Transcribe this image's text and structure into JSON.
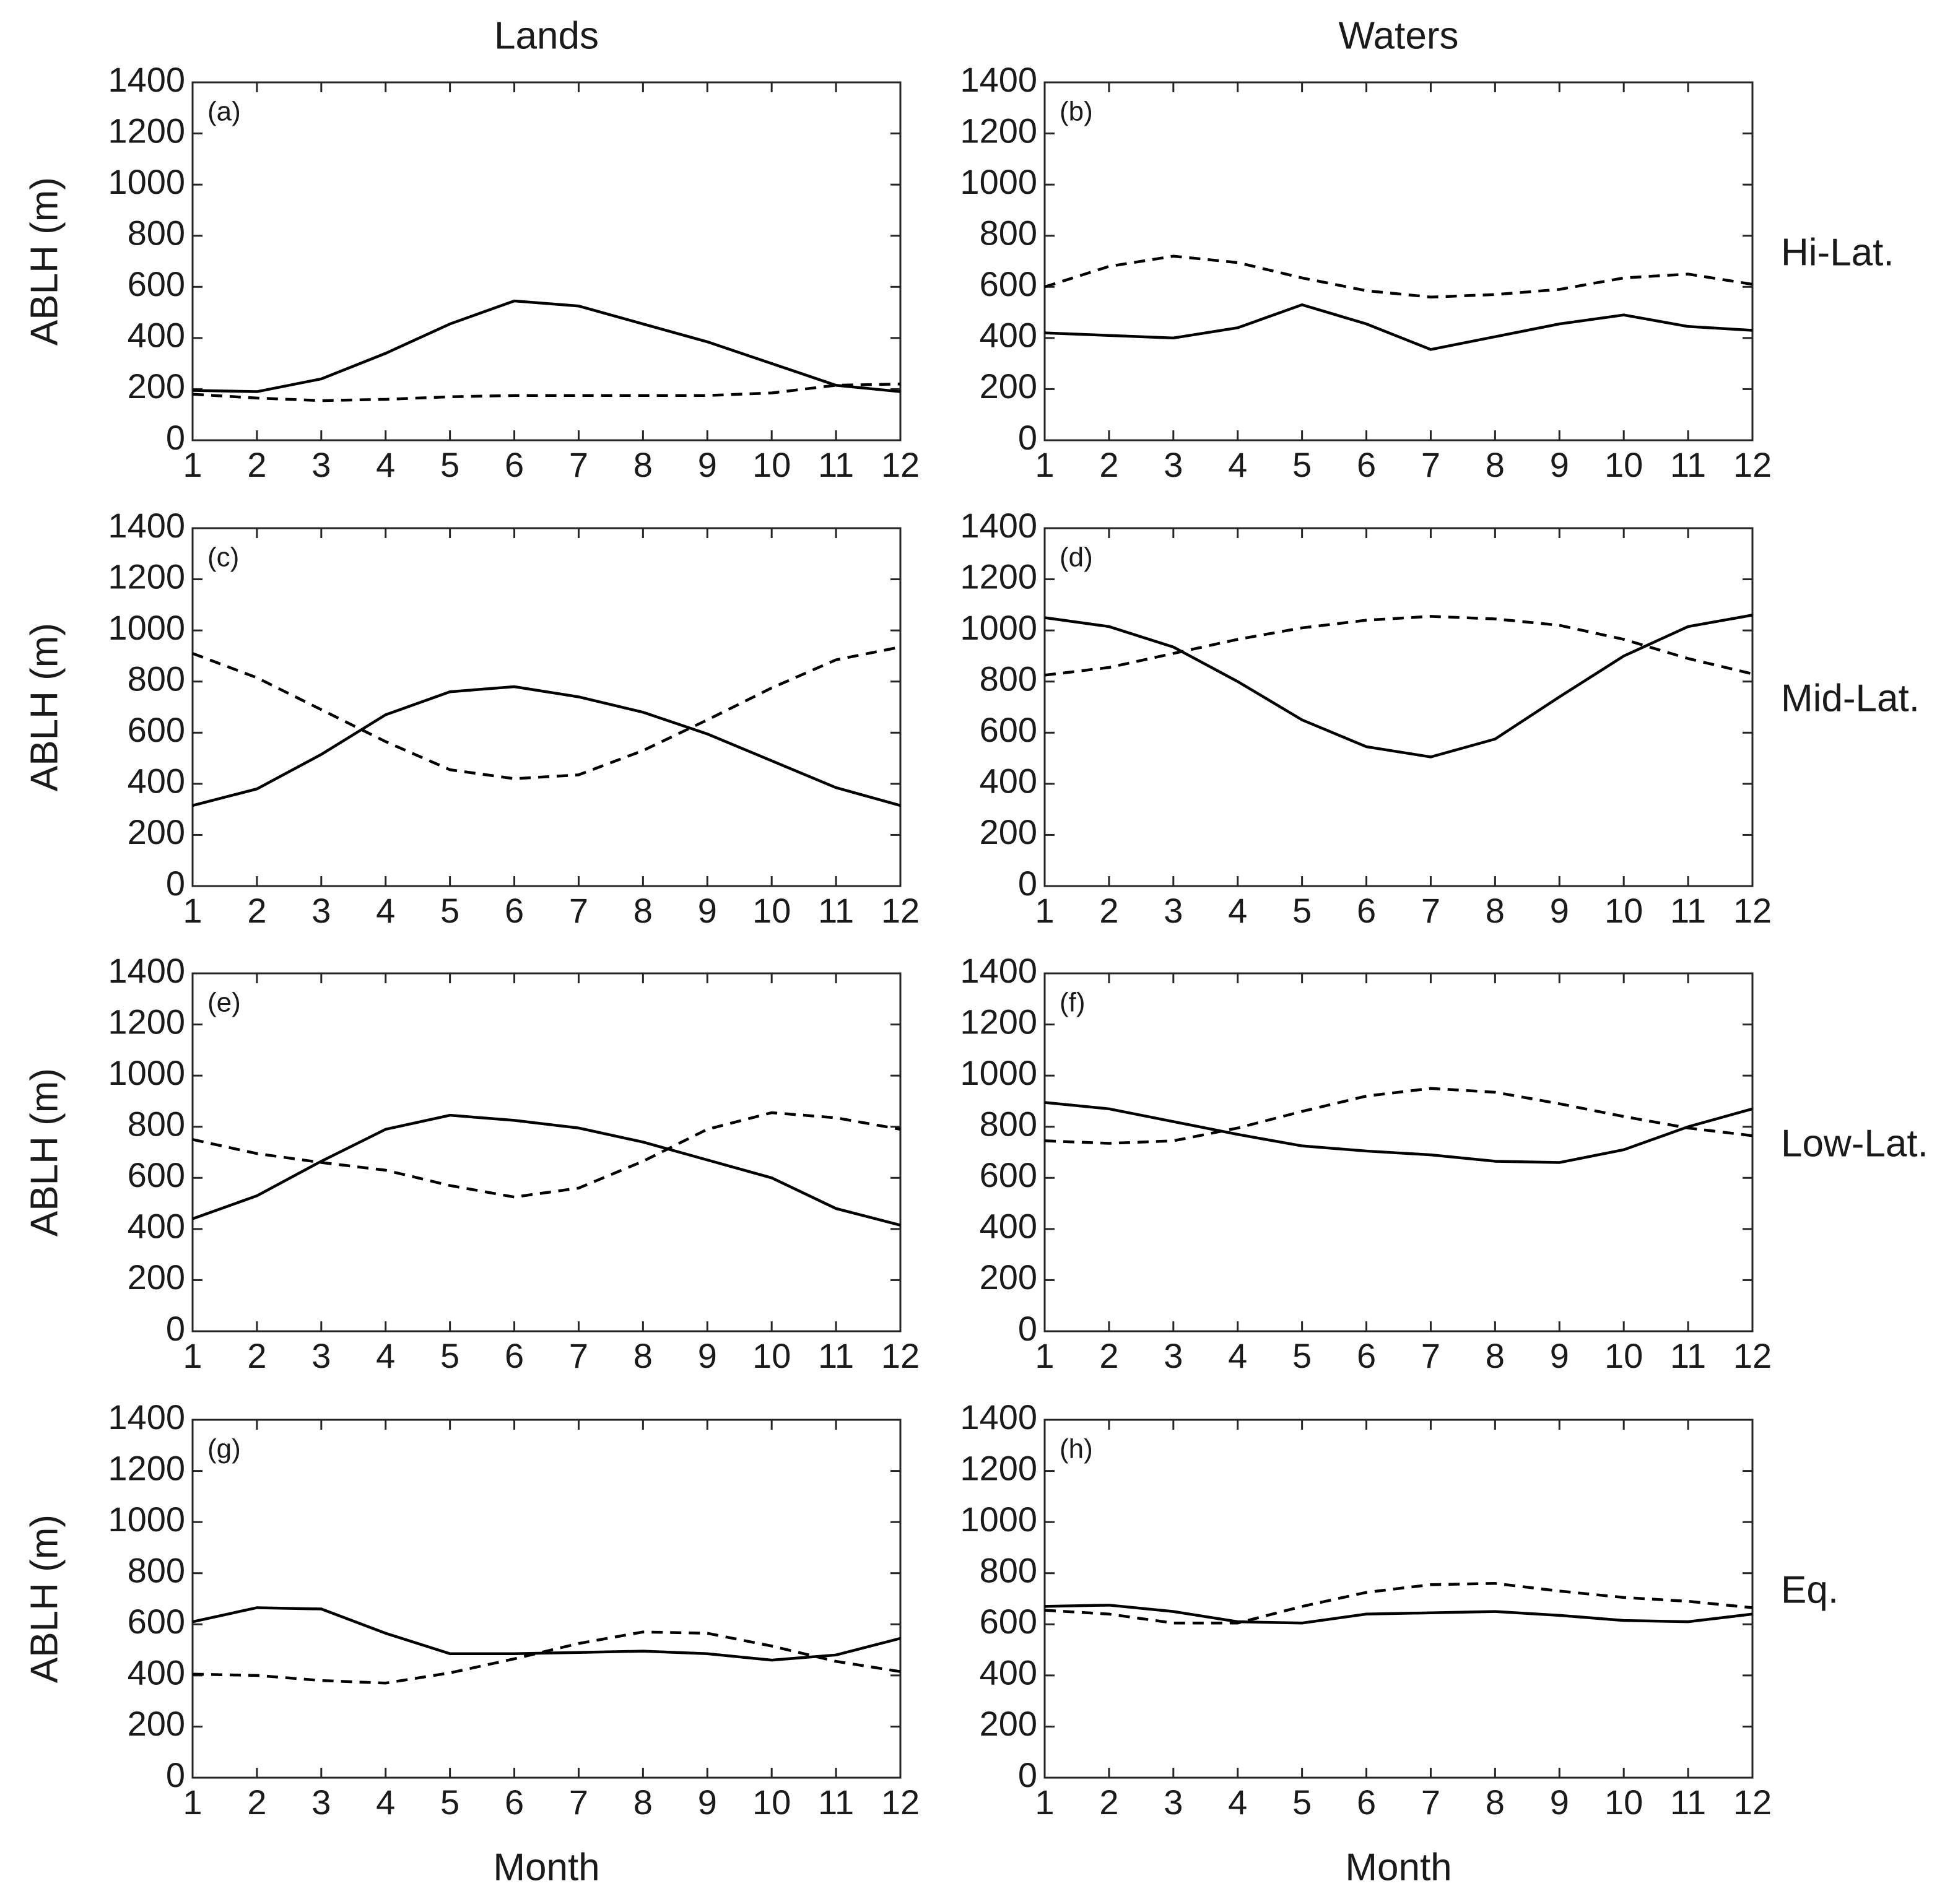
{
  "chart_data": [
    {
      "type": "line",
      "panel_label": "(a)",
      "column_title": "Lands",
      "ylabel": "ABLH (m)",
      "x": [
        1,
        2,
        3,
        4,
        5,
        6,
        7,
        8,
        9,
        10,
        11,
        12
      ],
      "xlim": [
        1,
        12
      ],
      "xticks": [
        1,
        2,
        3,
        4,
        5,
        6,
        7,
        8,
        9,
        10,
        11,
        12
      ],
      "ylim": [
        0,
        1400
      ],
      "yticks": [
        0,
        200,
        400,
        600,
        800,
        1000,
        1200,
        1400
      ],
      "series": [
        {
          "color": "#000000",
          "style": "solid",
          "values": [
            195,
            190,
            240,
            340,
            455,
            545,
            525,
            455,
            385,
            300,
            215,
            190
          ]
        },
        {
          "color": "#000000",
          "style": "dashed",
          "values": [
            180,
            165,
            155,
            160,
            170,
            175,
            175,
            175,
            175,
            185,
            215,
            220
          ]
        }
      ]
    },
    {
      "type": "line",
      "panel_label": "(b)",
      "column_title": "Waters",
      "row_label": "Hi-Lat.",
      "x": [
        1,
        2,
        3,
        4,
        5,
        6,
        7,
        8,
        9,
        10,
        11,
        12
      ],
      "xlim": [
        1,
        12
      ],
      "xticks": [
        1,
        2,
        3,
        4,
        5,
        6,
        7,
        8,
        9,
        10,
        11,
        12
      ],
      "ylim": [
        0,
        1400
      ],
      "yticks": [
        0,
        200,
        400,
        600,
        800,
        1000,
        1200,
        1400
      ],
      "series": [
        {
          "color": "#000000",
          "style": "solid",
          "values": [
            420,
            410,
            400,
            440,
            530,
            455,
            355,
            405,
            455,
            490,
            445,
            430
          ]
        },
        {
          "color": "#000000",
          "style": "dashed",
          "values": [
            600,
            680,
            720,
            695,
            635,
            585,
            560,
            570,
            590,
            635,
            650,
            610
          ]
        }
      ]
    },
    {
      "type": "line",
      "panel_label": "(c)",
      "ylabel": "ABLH (m)",
      "x": [
        1,
        2,
        3,
        4,
        5,
        6,
        7,
        8,
        9,
        10,
        11,
        12
      ],
      "xlim": [
        1,
        12
      ],
      "xticks": [
        1,
        2,
        3,
        4,
        5,
        6,
        7,
        8,
        9,
        10,
        11,
        12
      ],
      "ylim": [
        0,
        1400
      ],
      "yticks": [
        0,
        200,
        400,
        600,
        800,
        1000,
        1200,
        1400
      ],
      "series": [
        {
          "color": "#000000",
          "style": "solid",
          "values": [
            315,
            380,
            515,
            670,
            760,
            780,
            740,
            680,
            595,
            490,
            385,
            315
          ]
        },
        {
          "color": "#000000",
          "style": "dashed",
          "values": [
            910,
            815,
            690,
            565,
            455,
            420,
            435,
            530,
            650,
            775,
            885,
            935
          ]
        }
      ]
    },
    {
      "type": "line",
      "panel_label": "(d)",
      "row_label": "Mid-Lat.",
      "x": [
        1,
        2,
        3,
        4,
        5,
        6,
        7,
        8,
        9,
        10,
        11,
        12
      ],
      "xlim": [
        1,
        12
      ],
      "xticks": [
        1,
        2,
        3,
        4,
        5,
        6,
        7,
        8,
        9,
        10,
        11,
        12
      ],
      "ylim": [
        0,
        1400
      ],
      "yticks": [
        0,
        200,
        400,
        600,
        800,
        1000,
        1200,
        1400
      ],
      "series": [
        {
          "color": "#000000",
          "style": "solid",
          "values": [
            1050,
            1015,
            935,
            800,
            650,
            545,
            505,
            575,
            740,
            900,
            1015,
            1060
          ]
        },
        {
          "color": "#000000",
          "style": "dashed",
          "values": [
            825,
            855,
            910,
            965,
            1010,
            1040,
            1055,
            1045,
            1020,
            965,
            890,
            830
          ]
        }
      ]
    },
    {
      "type": "line",
      "panel_label": "(e)",
      "ylabel": "ABLH (m)",
      "x": [
        1,
        2,
        3,
        4,
        5,
        6,
        7,
        8,
        9,
        10,
        11,
        12
      ],
      "xlim": [
        1,
        12
      ],
      "xticks": [
        1,
        2,
        3,
        4,
        5,
        6,
        7,
        8,
        9,
        10,
        11,
        12
      ],
      "ylim": [
        0,
        1400
      ],
      "yticks": [
        0,
        200,
        400,
        600,
        800,
        1000,
        1200,
        1400
      ],
      "series": [
        {
          "color": "#000000",
          "style": "solid",
          "values": [
            440,
            530,
            665,
            790,
            845,
            825,
            795,
            740,
            670,
            600,
            480,
            415
          ]
        },
        {
          "color": "#000000",
          "style": "dashed",
          "values": [
            750,
            695,
            660,
            630,
            570,
            525,
            560,
            665,
            790,
            855,
            835,
            790
          ]
        }
      ]
    },
    {
      "type": "line",
      "panel_label": "(f)",
      "row_label": "Low-Lat.",
      "x": [
        1,
        2,
        3,
        4,
        5,
        6,
        7,
        8,
        9,
        10,
        11,
        12
      ],
      "xlim": [
        1,
        12
      ],
      "xticks": [
        1,
        2,
        3,
        4,
        5,
        6,
        7,
        8,
        9,
        10,
        11,
        12
      ],
      "ylim": [
        0,
        1400
      ],
      "yticks": [
        0,
        200,
        400,
        600,
        800,
        1000,
        1200,
        1400
      ],
      "series": [
        {
          "color": "#000000",
          "style": "solid",
          "values": [
            895,
            870,
            820,
            770,
            725,
            705,
            690,
            665,
            660,
            710,
            800,
            870
          ]
        },
        {
          "color": "#000000",
          "style": "dashed",
          "values": [
            745,
            735,
            745,
            795,
            860,
            920,
            950,
            935,
            890,
            840,
            795,
            765
          ]
        }
      ]
    },
    {
      "type": "line",
      "panel_label": "(g)",
      "ylabel": "ABLH (m)",
      "xlabel": "Month",
      "x": [
        1,
        2,
        3,
        4,
        5,
        6,
        7,
        8,
        9,
        10,
        11,
        12
      ],
      "xlim": [
        1,
        12
      ],
      "xticks": [
        1,
        2,
        3,
        4,
        5,
        6,
        7,
        8,
        9,
        10,
        11,
        12
      ],
      "ylim": [
        0,
        1400
      ],
      "yticks": [
        0,
        200,
        400,
        600,
        800,
        1000,
        1200,
        1400
      ],
      "series": [
        {
          "color": "#000000",
          "style": "solid",
          "values": [
            610,
            665,
            660,
            565,
            485,
            485,
            490,
            495,
            485,
            460,
            480,
            545
          ]
        },
        {
          "color": "#000000",
          "style": "dashed",
          "values": [
            405,
            400,
            380,
            370,
            410,
            465,
            525,
            570,
            565,
            515,
            455,
            415
          ]
        }
      ]
    },
    {
      "type": "line",
      "panel_label": "(h)",
      "row_label": "Eq.",
      "xlabel": "Month",
      "x": [
        1,
        2,
        3,
        4,
        5,
        6,
        7,
        8,
        9,
        10,
        11,
        12
      ],
      "xlim": [
        1,
        12
      ],
      "xticks": [
        1,
        2,
        3,
        4,
        5,
        6,
        7,
        8,
        9,
        10,
        11,
        12
      ],
      "ylim": [
        0,
        1400
      ],
      "yticks": [
        0,
        200,
        400,
        600,
        800,
        1000,
        1200,
        1400
      ],
      "series": [
        {
          "color": "#000000",
          "style": "solid",
          "values": [
            670,
            675,
            650,
            610,
            605,
            640,
            645,
            650,
            635,
            615,
            610,
            640
          ]
        },
        {
          "color": "#000000",
          "style": "dashed",
          "values": [
            655,
            640,
            605,
            605,
            670,
            725,
            755,
            760,
            730,
            705,
            690,
            665
          ]
        }
      ]
    }
  ]
}
